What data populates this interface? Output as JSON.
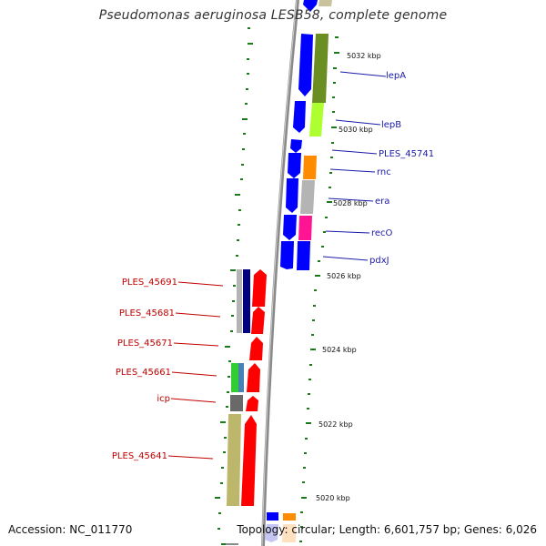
{
  "title": "Pseudomonas aeruginosa LESB58, complete genome",
  "footer": {
    "accession": "Accession: NC_011770",
    "topology": "Topology: circular; Length: 6,601,757 bp; Genes: 6,026"
  },
  "ticks": [
    "5032 kbp",
    "5030 kbp",
    "5028 kbp",
    "5026 kbp",
    "5024 kbp",
    "5022 kbp",
    "5020 kbp"
  ],
  "labels_right": [
    "lepA",
    "lepB",
    "PLES_45741",
    "rnc",
    "era",
    "recO",
    "pdxJ"
  ],
  "labels_left": [
    "PLES_45691",
    "PLES_45681",
    "PLES_45671",
    "PLES_45661",
    "icp",
    "PLES_45641"
  ],
  "colors": {
    "cds_forward": "#ff0000",
    "cds_reverse": "#0000ff",
    "backbone": "#909090",
    "tick": "#1a7a1a"
  }
}
